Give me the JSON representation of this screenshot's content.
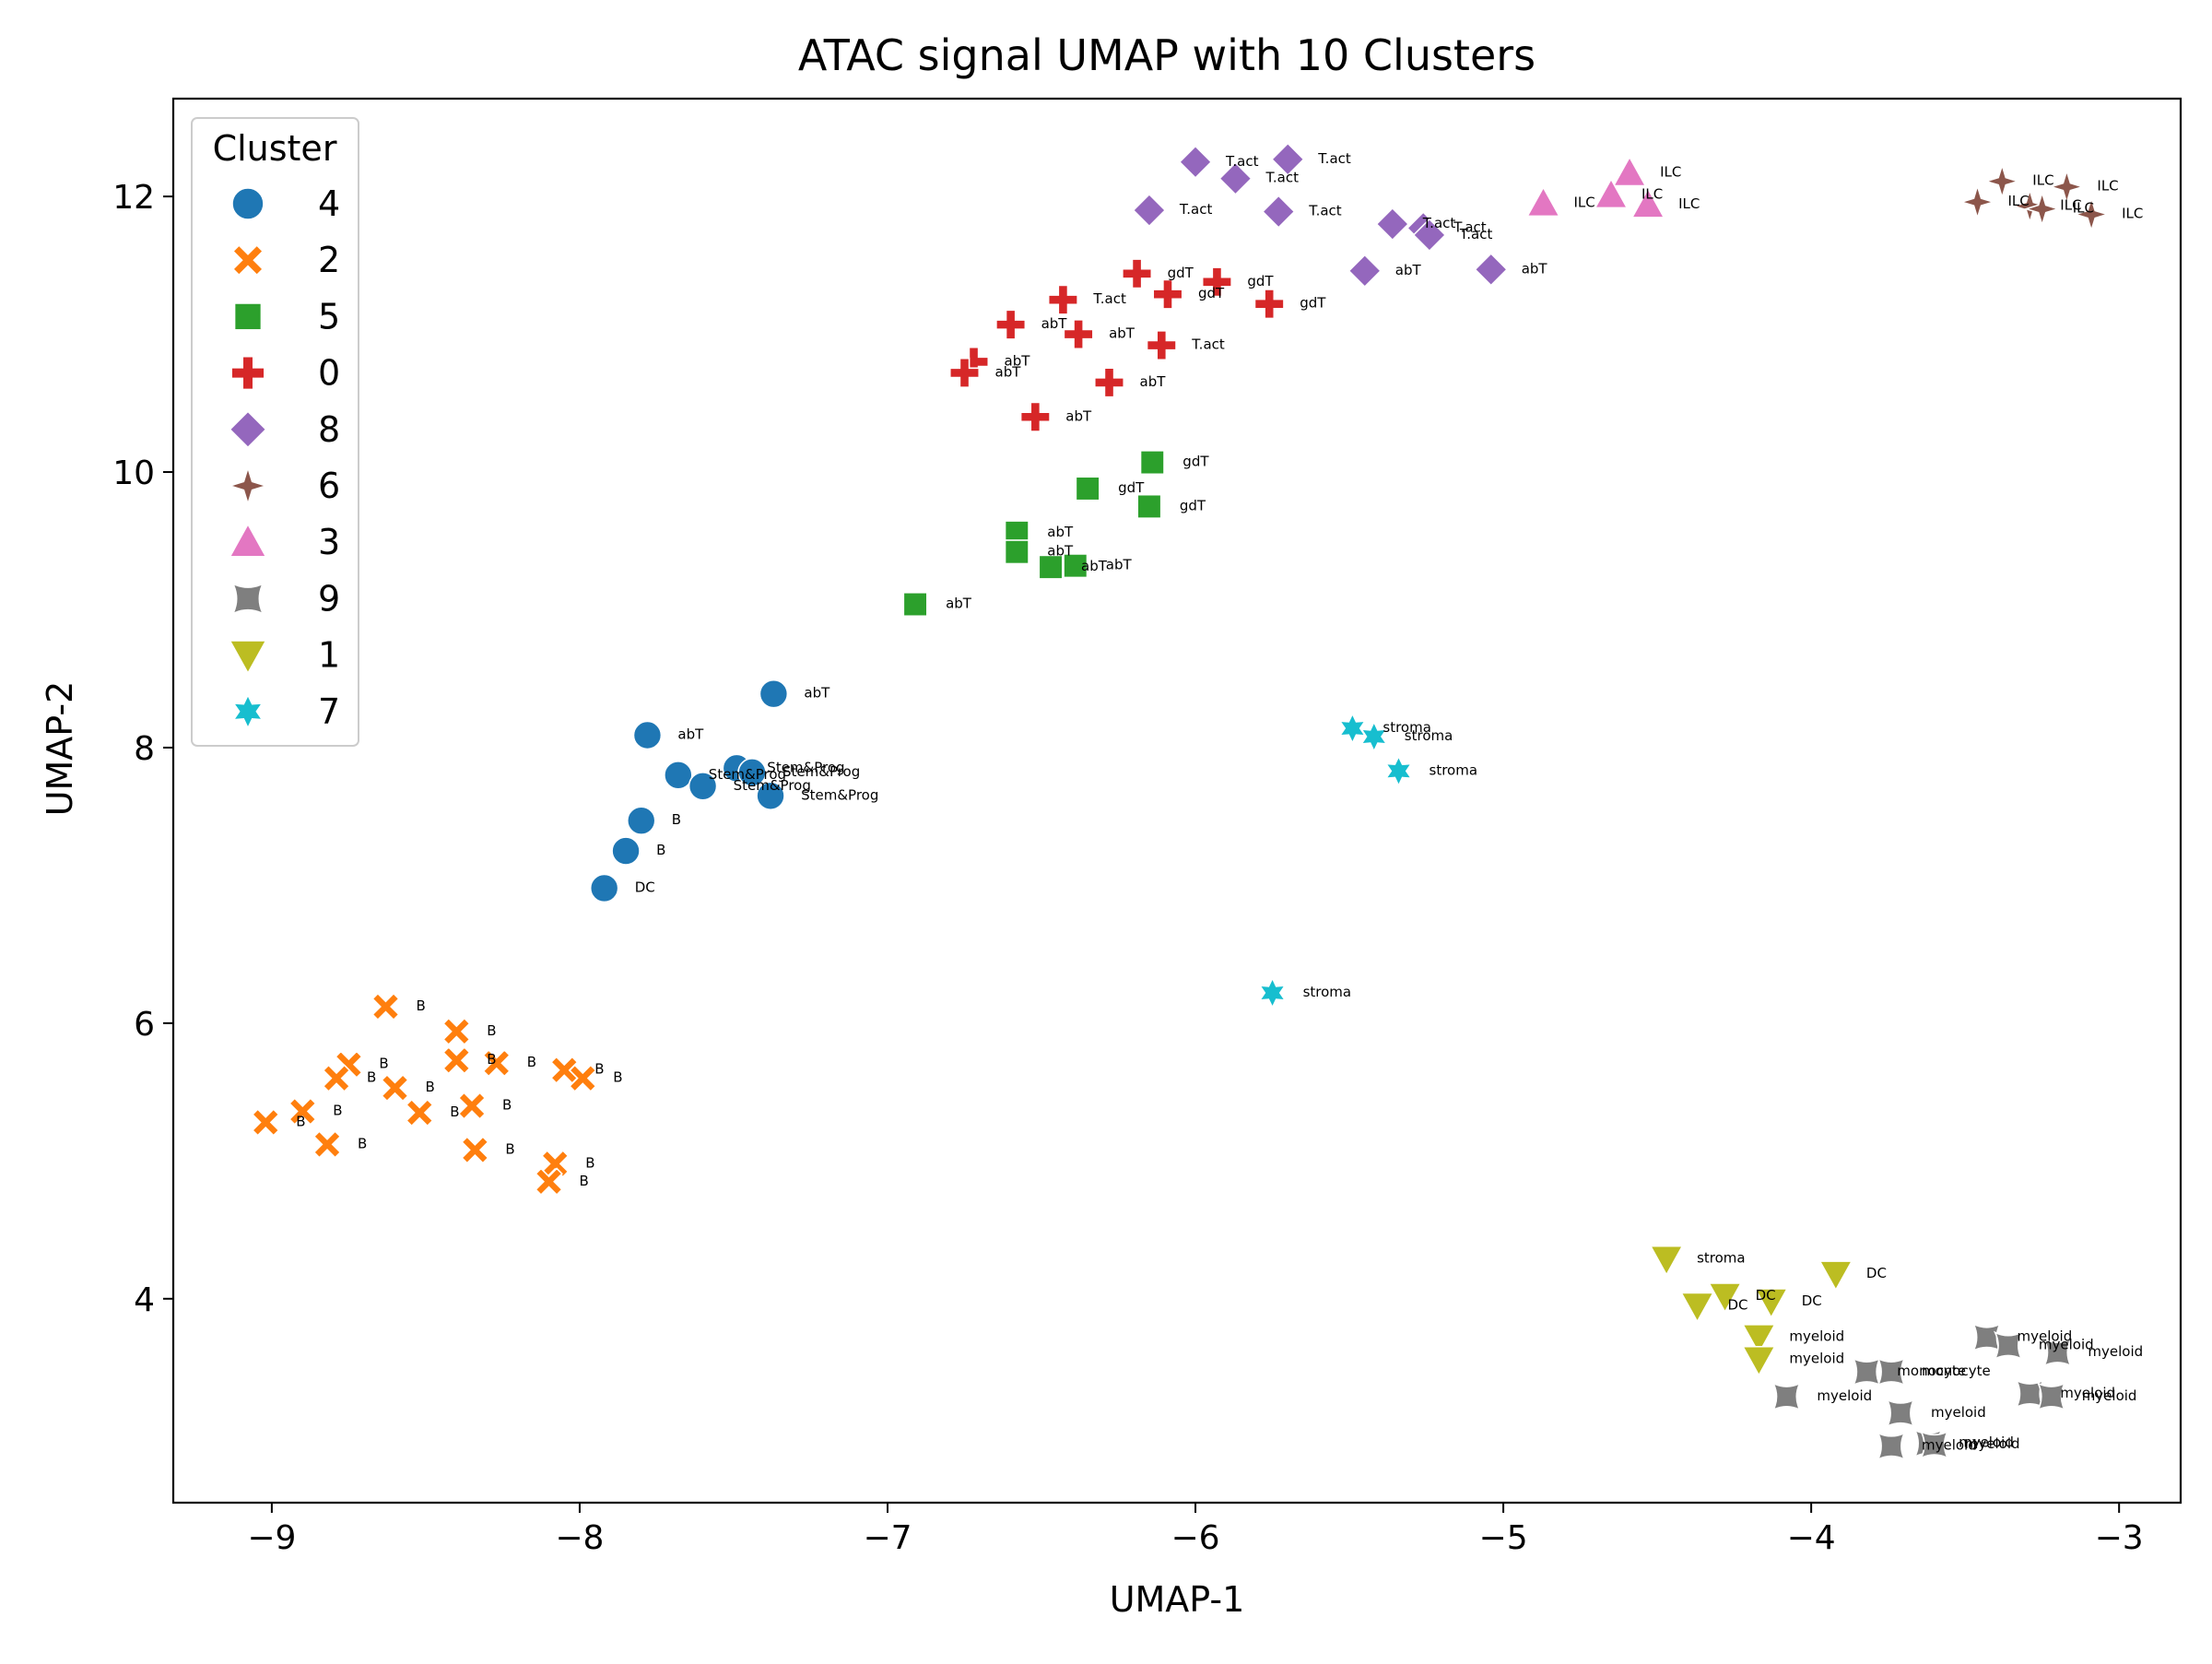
{
  "chart_data": {
    "type": "scatter",
    "title": "ATAC signal UMAP with 10 Clusters",
    "xlabel": "UMAP-1",
    "ylabel": "UMAP-2",
    "xlim": [
      -9.32,
      -2.8
    ],
    "ylim": [
      2.52,
      12.71
    ],
    "xticks": [
      -9,
      -8,
      -7,
      -6,
      -5,
      -4,
      -3
    ],
    "xtick_labels": [
      "−9",
      "−8",
      "−7",
      "−6",
      "−5",
      "−4",
      "−3"
    ],
    "yticks": [
      4,
      6,
      8,
      10,
      12
    ],
    "ytick_labels": [
      "4",
      "6",
      "8",
      "10",
      "12"
    ],
    "grid": false,
    "legend": {
      "title": "Cluster",
      "placement": "upper-left",
      "entries": [
        "4",
        "2",
        "5",
        "0",
        "8",
        "6",
        "3",
        "9",
        "1",
        "7"
      ]
    },
    "series": [
      {
        "name": "4",
        "marker": "circle",
        "color": "#1f77b4",
        "points": [
          [
            -7.37,
            8.39,
            "abT"
          ],
          [
            -7.78,
            8.09,
            "abT"
          ],
          [
            -7.49,
            7.85,
            "Stem&Prog"
          ],
          [
            -7.44,
            7.82,
            "Stem&Prog"
          ],
          [
            -7.68,
            7.8,
            "Stem&Prog"
          ],
          [
            -7.6,
            7.72,
            "Stem&Prog"
          ],
          [
            -7.38,
            7.65,
            "Stem&Prog"
          ],
          [
            -7.8,
            7.47,
            "B"
          ],
          [
            -7.85,
            7.25,
            "B"
          ],
          [
            -7.92,
            6.98,
            "DC"
          ]
        ]
      },
      {
        "name": "2",
        "marker": "x",
        "color": "#ff7f0e",
        "points": [
          [
            -8.63,
            6.12,
            "B"
          ],
          [
            -8.4,
            5.94,
            "B"
          ],
          [
            -8.4,
            5.73,
            "B"
          ],
          [
            -8.27,
            5.71,
            "B"
          ],
          [
            -8.75,
            5.7,
            "B"
          ],
          [
            -8.05,
            5.66,
            "B"
          ],
          [
            -8.79,
            5.6,
            "B"
          ],
          [
            -7.99,
            5.6,
            "B"
          ],
          [
            -8.6,
            5.53,
            "B"
          ],
          [
            -8.52,
            5.35,
            "B"
          ],
          [
            -8.35,
            5.4,
            "B"
          ],
          [
            -8.9,
            5.36,
            "B"
          ],
          [
            -9.02,
            5.28,
            "B"
          ],
          [
            -8.82,
            5.12,
            "B"
          ],
          [
            -8.34,
            5.08,
            "B"
          ],
          [
            -8.08,
            4.98,
            "B"
          ],
          [
            -8.1,
            4.85,
            "B"
          ]
        ]
      },
      {
        "name": "5",
        "marker": "square",
        "color": "#2ca02c",
        "points": [
          [
            -6.14,
            10.07,
            "gdT"
          ],
          [
            -6.35,
            9.88,
            "gdT"
          ],
          [
            -6.15,
            9.75,
            "gdT"
          ],
          [
            -6.58,
            9.56,
            "abT"
          ],
          [
            -6.58,
            9.42,
            "abT"
          ],
          [
            -6.39,
            9.32,
            "abT"
          ],
          [
            -6.47,
            9.31,
            "abT"
          ],
          [
            -6.91,
            9.04,
            "abT"
          ]
        ]
      },
      {
        "name": "0",
        "marker": "plus",
        "color": "#d62728",
        "points": [
          [
            -6.19,
            11.44,
            "gdT"
          ],
          [
            -5.93,
            11.38,
            "gdT"
          ],
          [
            -6.09,
            11.29,
            "gdT"
          ],
          [
            -6.43,
            11.25,
            "T.act"
          ],
          [
            -5.76,
            11.22,
            "gdT"
          ],
          [
            -6.6,
            11.07,
            "abT"
          ],
          [
            -6.38,
            11.0,
            "abT"
          ],
          [
            -6.11,
            10.92,
            "T.act"
          ],
          [
            -6.72,
            10.8,
            "abT"
          ],
          [
            -6.75,
            10.72,
            "abT"
          ],
          [
            -6.28,
            10.65,
            "abT"
          ],
          [
            -6.52,
            10.4,
            "abT"
          ]
        ]
      },
      {
        "name": "8",
        "marker": "diamond",
        "color": "#9467bd",
        "points": [
          [
            -6.0,
            12.25,
            "T.act"
          ],
          [
            -5.7,
            12.27,
            "T.act"
          ],
          [
            -5.87,
            12.13,
            "T.act"
          ],
          [
            -6.15,
            11.9,
            "T.act"
          ],
          [
            -5.73,
            11.89,
            "T.act"
          ],
          [
            -5.36,
            11.8,
            "T.act"
          ],
          [
            -5.26,
            11.77,
            "T.act"
          ],
          [
            -5.24,
            11.72,
            "T.act"
          ],
          [
            -5.45,
            11.46,
            "abT"
          ],
          [
            -5.04,
            11.47,
            "abT"
          ]
        ]
      },
      {
        "name": "6",
        "marker": "star4",
        "color": "#8c564b",
        "points": [
          [
            -3.38,
            12.11,
            "ILC"
          ],
          [
            -3.17,
            12.07,
            "ILC"
          ],
          [
            -3.46,
            11.96,
            "ILC"
          ],
          [
            -3.29,
            11.93,
            "ILC"
          ],
          [
            -3.25,
            11.91,
            "ILC"
          ],
          [
            -3.09,
            11.87,
            "ILC"
          ]
        ]
      },
      {
        "name": "3",
        "marker": "triangle-up",
        "color": "#e377c2",
        "points": [
          [
            -4.59,
            12.17,
            "ILC"
          ],
          [
            -4.65,
            12.01,
            "ILC"
          ],
          [
            -4.87,
            11.95,
            "ILC"
          ],
          [
            -4.53,
            11.94,
            "ILC"
          ]
        ]
      },
      {
        "name": "9",
        "marker": "star4-hollow",
        "color": "#7f7f7f",
        "points": [
          [
            -3.43,
            3.72,
            "myeloid"
          ],
          [
            -3.36,
            3.66,
            "myeloid"
          ],
          [
            -3.2,
            3.61,
            "myeloid"
          ],
          [
            -3.82,
            3.47,
            "monocyte"
          ],
          [
            -3.74,
            3.47,
            "monocyte"
          ],
          [
            -3.29,
            3.31,
            "myeloid"
          ],
          [
            -3.22,
            3.29,
            "myeloid"
          ],
          [
            -4.08,
            3.29,
            "myeloid"
          ],
          [
            -3.71,
            3.17,
            "myeloid"
          ],
          [
            -3.62,
            2.95,
            "myeloid"
          ],
          [
            -3.6,
            2.94,
            "myeloid"
          ],
          [
            -3.74,
            2.93,
            "myeloid"
          ]
        ]
      },
      {
        "name": "1",
        "marker": "triangle-down",
        "color": "#bcbd22",
        "points": [
          [
            -4.47,
            4.29,
            "stroma"
          ],
          [
            -3.92,
            4.18,
            "DC"
          ],
          [
            -4.28,
            4.02,
            "DC"
          ],
          [
            -4.13,
            3.98,
            "DC"
          ],
          [
            -4.37,
            3.95,
            "DC"
          ],
          [
            -4.17,
            3.72,
            "myeloid"
          ],
          [
            -4.17,
            3.56,
            "myeloid"
          ]
        ]
      },
      {
        "name": "7",
        "marker": "star6",
        "color": "#17becf",
        "points": [
          [
            -5.49,
            8.14,
            "stroma"
          ],
          [
            -5.42,
            8.08,
            "stroma"
          ],
          [
            -5.34,
            7.83,
            "stroma"
          ],
          [
            -5.75,
            6.22,
            "stroma"
          ]
        ]
      }
    ]
  }
}
